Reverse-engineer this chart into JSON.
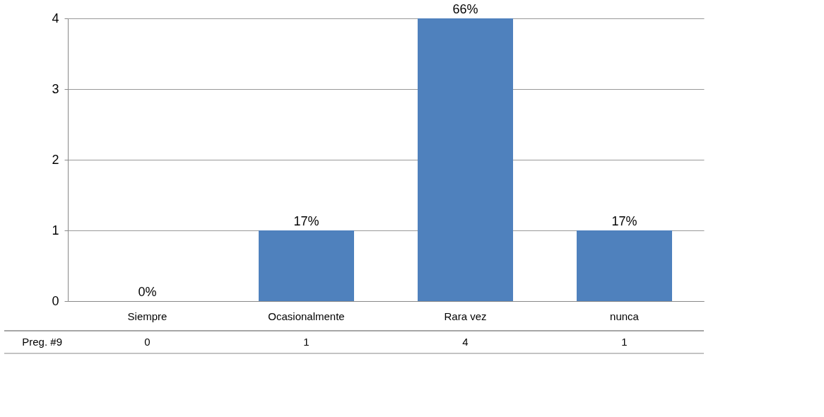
{
  "chart_data": {
    "type": "bar",
    "categories": [
      "Siempre",
      "Ocasionalmente",
      "Rara vez",
      "nunca"
    ],
    "series": [
      {
        "name": "Preg. #9",
        "color": "#4f81bd",
        "values": [
          0,
          1,
          4,
          1
        ]
      }
    ],
    "value_labels": [
      "0%",
      "17%",
      "66%",
      "17%"
    ],
    "data_labels": true,
    "ylim": [
      0,
      4
    ],
    "yticks": [
      0,
      1,
      2,
      3,
      4
    ],
    "grid": "y"
  }
}
